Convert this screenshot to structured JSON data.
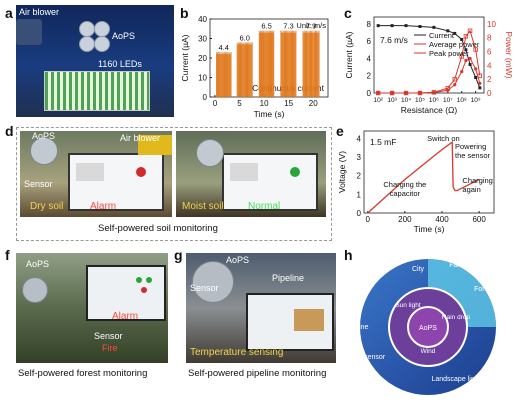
{
  "panels": {
    "a": {
      "label": "a",
      "texts": {
        "air_blower": "Air blower",
        "aops": "AoPS",
        "leds": "1160 LEDs"
      }
    },
    "b": {
      "label": "b",
      "unit": "Unit: m/s",
      "speeds": [
        "4.4",
        "6.0",
        "6.5",
        "7.3",
        "7.9"
      ],
      "continuous": "Continuous current"
    },
    "c": {
      "label": "c",
      "speed": "7.6 m/s"
    },
    "d": {
      "label": "d",
      "aops": "AoPS",
      "air_blower": "Air blower",
      "sensor": "Sensor",
      "dry_soil": "Dry soil",
      "alarm": "Alarm",
      "moist_soil": "Moist soil",
      "normal": "Normal",
      "caption": "Self-powered soil monitoring"
    },
    "e": {
      "label": "e",
      "cap": "1.5 mF",
      "switch_on": "Switch on",
      "powering": "Powering the sensor",
      "charging_cap": "Charging the capacitor",
      "charging_again": "Charging again"
    },
    "f": {
      "label": "f",
      "aops": "AoPS",
      "alarm": "Alarm",
      "sensor": "Sensor",
      "fire": "Fire",
      "caption": "Self-powered forest monitoring"
    },
    "g": {
      "label": "g",
      "aops": "AoPS",
      "sensor": "Sensor",
      "pipeline": "Pipeline",
      "temp": "Temperature sensing",
      "caption": "Self-powered pipeline monitoring"
    },
    "h": {
      "label": "h",
      "center": "AoPS",
      "inner": [
        "Sun light",
        "Rain drop",
        "Wind"
      ],
      "outer": [
        "Farmland",
        "Forest",
        "City",
        "Pipeline",
        "Environment sensor",
        "Landscape light"
      ]
    }
  },
  "chart_data": [
    {
      "type": "line",
      "panel": "b",
      "xlabel": "Time (s)",
      "ylabel": "Current (µA)",
      "xticks": [
        "0",
        "5",
        "10",
        "15",
        "20"
      ],
      "yticks": [
        "0",
        "10",
        "20",
        "30",
        "40"
      ],
      "xlim": [
        -1,
        23
      ],
      "ylim": [
        0,
        40
      ],
      "series": [
        {
          "name": "4.4",
          "x": [
            0.3,
            3.3
          ],
          "peak": 22
        },
        {
          "name": "6.0",
          "x": [
            4.5,
            7.6
          ],
          "peak": 27
        },
        {
          "name": "6.5",
          "x": [
            9.0,
            12.0
          ],
          "peak": 33
        },
        {
          "name": "7.3",
          "x": [
            13.4,
            16.5
          ],
          "peak": 33
        },
        {
          "name": "7.9",
          "x": [
            17.9,
            21.2
          ],
          "peak": 33
        }
      ]
    },
    {
      "type": "line",
      "panel": "c",
      "xlabel": "Resistance (Ω)",
      "ylabel": "Current (µA)",
      "y2label": "Power (mW)",
      "yticks": [
        "0",
        "2",
        "4",
        "6",
        "8"
      ],
      "y2ticks": [
        "0",
        "2",
        "4",
        "6",
        "8",
        "10"
      ],
      "xticks": [
        "10²",
        "10³",
        "10⁴",
        "10⁵",
        "10⁶",
        "10⁷",
        "10⁸",
        "10⁹"
      ],
      "xlim": [
        1.7,
        9.6
      ],
      "ylim": [
        0,
        8.8
      ],
      "y2lim": [
        0,
        11
      ],
      "legend": "top-right",
      "series": [
        {
          "name": "Current",
          "color": "#222222",
          "axis": "left",
          "x": [
            2,
            3,
            4,
            5,
            6,
            7,
            7.5,
            8,
            8.3,
            8.6,
            9,
            9.3
          ],
          "y": [
            7.8,
            7.8,
            7.8,
            7.7,
            7.6,
            7.2,
            6.9,
            6.2,
            5.0,
            3.3,
            1.8,
            0.6
          ]
        },
        {
          "name": "Average power",
          "color": "#d9352b",
          "axis": "right",
          "x": [
            2,
            3,
            4,
            5,
            6,
            7,
            7.5,
            8,
            8.3,
            8.6,
            9,
            9.3
          ],
          "y": [
            0,
            0,
            0,
            0,
            0.05,
            0.4,
            1.2,
            3.1,
            4.7,
            5.0,
            3.5,
            1.4
          ]
        },
        {
          "name": "Peak power",
          "color": "#d9352b",
          "axis": "right",
          "x": [
            2,
            3,
            4,
            5,
            6,
            7,
            7.5,
            8,
            8.3,
            8.6,
            9,
            9.3
          ],
          "y": [
            0,
            0,
            0,
            0,
            0.1,
            0.7,
            2.0,
            5.3,
            8.2,
            9.0,
            6.3,
            2.5
          ]
        }
      ]
    },
    {
      "type": "line",
      "panel": "e",
      "xlabel": "Time (s)",
      "ylabel": "Voltage (V)",
      "xticks": [
        "0",
        "200",
        "400",
        "600"
      ],
      "yticks": [
        "0",
        "1",
        "2",
        "3",
        "4"
      ],
      "xlim": [
        -20,
        680
      ],
      "ylim": [
        0,
        4.4
      ],
      "series": [
        {
          "name": "",
          "color": "#d9352b",
          "x": [
            0,
            100,
            200,
            300,
            400,
            455,
            460,
            470,
            480,
            520,
            560,
            600
          ],
          "y": [
            0,
            0.9,
            1.8,
            2.6,
            3.4,
            3.8,
            1.4,
            1.2,
            1.2,
            1.4,
            1.6,
            1.8
          ]
        }
      ]
    }
  ]
}
